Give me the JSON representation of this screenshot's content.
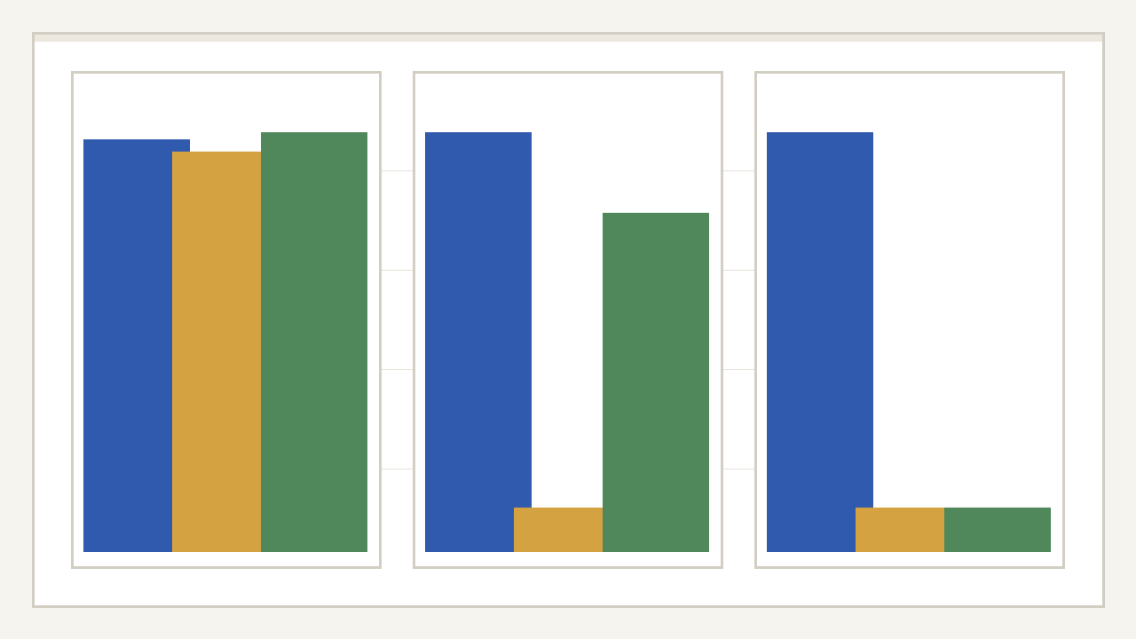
{
  "chart_data": [
    {
      "type": "bar",
      "ylim": [
        0,
        100
      ],
      "grid": true,
      "series_colors": [
        "#2f5aae",
        "#d4a241",
        "#50885b"
      ],
      "values": [
        98.3,
        95.4,
        100
      ]
    },
    {
      "type": "bar",
      "ylim": [
        0,
        100
      ],
      "grid": true,
      "series_colors": [
        "#2f5aae",
        "#d4a241",
        "#50885b"
      ],
      "values": [
        100,
        10.6,
        80.8
      ]
    },
    {
      "type": "bar",
      "ylim": [
        0,
        100
      ],
      "grid": true,
      "series_colors": [
        "#2f5aae",
        "#d4a241",
        "#50885b"
      ],
      "values": [
        100,
        10.6,
        10.6
      ]
    }
  ],
  "colors": {
    "background": "#f5f4ef",
    "frame_border": "#d3cec3",
    "gridline": "#e5e2d8"
  }
}
